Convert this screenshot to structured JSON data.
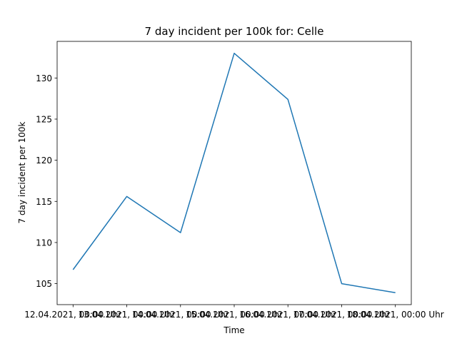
{
  "chart_data": {
    "type": "line",
    "title": "7 day incident per 100k for: Celle",
    "xlabel": "Time",
    "ylabel": "7 day incident per 100k",
    "categories": [
      "12.04.2021, 00:00 Uhr",
      "13.04.2021, 00:00 Uhr",
      "14.04.2021, 00:00 Uhr",
      "15.04.2021, 00:00 Uhr",
      "16.04.2021, 00:00 Uhr",
      "17.04.2021, 00:00 Uhr",
      "18.04.2021, 00:00 Uhr"
    ],
    "series": [
      {
        "values": [
          106.7,
          115.6,
          111.2,
          133.0,
          127.4,
          105.0,
          103.9
        ]
      }
    ],
    "yticks": [
      105,
      110,
      115,
      120,
      125,
      130
    ],
    "ylim": [
      102.45,
      134.45
    ],
    "grid": false,
    "line_color": "#1f77b4"
  }
}
